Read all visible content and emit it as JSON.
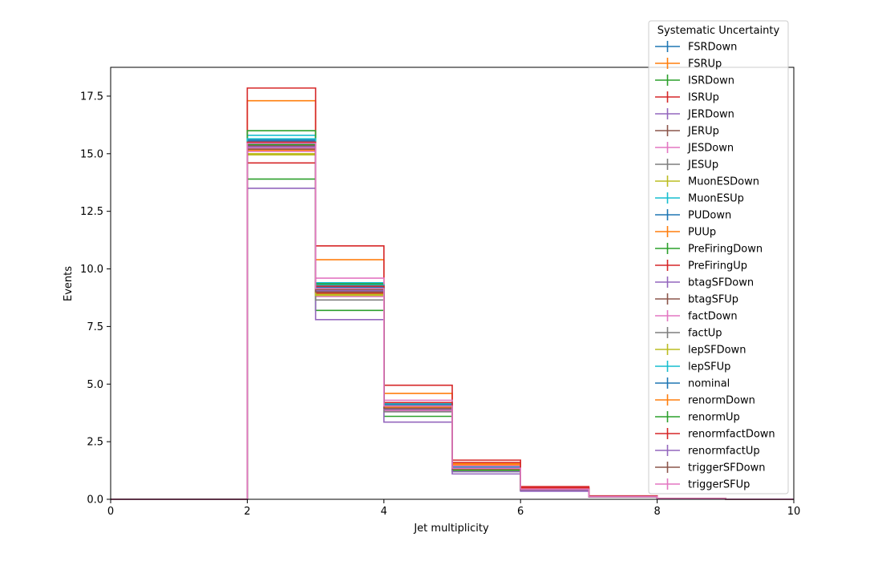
{
  "chart_data": {
    "type": "step-histogram",
    "xlabel": "Jet multiplicity",
    "ylabel": "Events",
    "xlim": [
      0,
      10
    ],
    "ylim": [
      0,
      18.75
    ],
    "x_ticks": [
      0,
      2,
      4,
      6,
      8,
      10
    ],
    "y_ticks": [
      0.0,
      2.5,
      5.0,
      7.5,
      10.0,
      12.5,
      15.0,
      17.5
    ],
    "x_tick_labels": [
      "0",
      "2",
      "4",
      "6",
      "8",
      "10"
    ],
    "y_tick_labels": [
      "0.0",
      "2.5",
      "5.0",
      "7.5",
      "10.0",
      "12.5",
      "15.0",
      "17.5"
    ],
    "bin_edges": [
      0,
      1,
      2,
      3,
      4,
      5,
      6,
      7,
      8,
      9,
      10
    ],
    "legend": {
      "title": "Systematic Uncertainty",
      "placement": "upper-right-outside-top"
    },
    "series": [
      {
        "name": "FSRDown",
        "color": "#1f77b4",
        "values": [
          0,
          0,
          15.6,
          9.3,
          4.1,
          1.4,
          0.45,
          0.13,
          0.03,
          0.005
        ]
      },
      {
        "name": "FSRUp",
        "color": "#ff7f0e",
        "values": [
          0,
          0,
          17.3,
          10.4,
          4.6,
          1.55,
          0.5,
          0.14,
          0.035,
          0.006
        ]
      },
      {
        "name": "ISRDown",
        "color": "#2ca02c",
        "values": [
          0,
          0,
          13.9,
          8.2,
          3.6,
          1.2,
          0.38,
          0.11,
          0.03,
          0.005
        ]
      },
      {
        "name": "ISRUp",
        "color": "#d62728",
        "values": [
          0,
          0,
          17.85,
          11.0,
          4.95,
          1.7,
          0.55,
          0.15,
          0.04,
          0.007
        ]
      },
      {
        "name": "JERDown",
        "color": "#9467bd",
        "values": [
          0,
          0,
          15.4,
          9.1,
          4.05,
          1.35,
          0.44,
          0.12,
          0.03,
          0.005
        ]
      },
      {
        "name": "JERUp",
        "color": "#8c564b",
        "values": [
          0,
          0,
          15.3,
          9.05,
          4.0,
          1.33,
          0.43,
          0.12,
          0.03,
          0.005
        ]
      },
      {
        "name": "JESDown",
        "color": "#e377c2",
        "values": [
          0,
          0,
          15.1,
          8.8,
          3.85,
          1.27,
          0.4,
          0.11,
          0.03,
          0.005
        ]
      },
      {
        "name": "JESUp",
        "color": "#7f7f7f",
        "values": [
          0,
          0,
          15.5,
          9.25,
          4.15,
          1.42,
          0.46,
          0.13,
          0.03,
          0.006
        ]
      },
      {
        "name": "MuonESDown",
        "color": "#bcbd22",
        "values": [
          0,
          0,
          15.0,
          8.9,
          3.95,
          1.3,
          0.42,
          0.12,
          0.03,
          0.005
        ]
      },
      {
        "name": "MuonESUp",
        "color": "#17becf",
        "values": [
          0,
          0,
          15.8,
          9.4,
          4.2,
          1.45,
          0.46,
          0.13,
          0.03,
          0.006
        ]
      },
      {
        "name": "PUDown",
        "color": "#1f77b4",
        "values": [
          0,
          0,
          15.55,
          9.2,
          4.1,
          1.38,
          0.45,
          0.13,
          0.03,
          0.005
        ]
      },
      {
        "name": "PUUp",
        "color": "#ff7f0e",
        "values": [
          0,
          0,
          15.2,
          9.0,
          3.95,
          1.32,
          0.43,
          0.12,
          0.03,
          0.005
        ]
      },
      {
        "name": "PreFiringDown",
        "color": "#2ca02c",
        "values": [
          0,
          0,
          16.0,
          9.35,
          4.15,
          1.4,
          0.45,
          0.13,
          0.03,
          0.005
        ]
      },
      {
        "name": "PreFiringUp",
        "color": "#d62728",
        "values": [
          0,
          0,
          14.6,
          8.95,
          3.9,
          1.3,
          0.42,
          0.12,
          0.03,
          0.005
        ]
      },
      {
        "name": "btagSFDown",
        "color": "#9467bd",
        "values": [
          0,
          0,
          13.5,
          7.8,
          3.35,
          1.1,
          0.35,
          0.1,
          0.025,
          0.004
        ]
      },
      {
        "name": "btagSFUp",
        "color": "#8c564b",
        "values": [
          0,
          0,
          15.35,
          9.1,
          4.05,
          1.35,
          0.44,
          0.12,
          0.03,
          0.005
        ]
      },
      {
        "name": "factDown",
        "color": "#e377c2",
        "values": [
          0,
          0,
          15.25,
          9.6,
          4.3,
          1.45,
          0.47,
          0.13,
          0.03,
          0.006
        ]
      },
      {
        "name": "factUp",
        "color": "#7f7f7f",
        "values": [
          0,
          0,
          15.3,
          8.65,
          3.8,
          1.25,
          0.4,
          0.11,
          0.03,
          0.005
        ]
      },
      {
        "name": "lepSFDown",
        "color": "#bcbd22",
        "values": [
          0,
          0,
          14.95,
          8.85,
          3.9,
          1.28,
          0.41,
          0.11,
          0.03,
          0.005
        ]
      },
      {
        "name": "lepSFUp",
        "color": "#17becf",
        "values": [
          0,
          0,
          15.65,
          9.3,
          4.15,
          1.4,
          0.45,
          0.13,
          0.03,
          0.005
        ]
      },
      {
        "name": "nominal",
        "color": "#1f77b4",
        "values": [
          0,
          0,
          15.45,
          9.2,
          4.1,
          1.38,
          0.44,
          0.12,
          0.03,
          0.005
        ]
      },
      {
        "name": "renormDown",
        "color": "#ff7f0e",
        "values": [
          0,
          0,
          15.15,
          9.0,
          4.0,
          1.5,
          0.47,
          0.13,
          0.03,
          0.006
        ]
      },
      {
        "name": "renormUp",
        "color": "#2ca02c",
        "values": [
          0,
          0,
          15.4,
          9.15,
          4.05,
          1.25,
          0.41,
          0.12,
          0.03,
          0.005
        ]
      },
      {
        "name": "renormfactDown",
        "color": "#d62728",
        "values": [
          0,
          0,
          15.5,
          9.25,
          4.2,
          1.6,
          0.5,
          0.14,
          0.035,
          0.006
        ]
      },
      {
        "name": "renormfactUp",
        "color": "#9467bd",
        "values": [
          0,
          0,
          15.3,
          9.05,
          3.9,
          1.2,
          0.39,
          0.11,
          0.03,
          0.005
        ]
      },
      {
        "name": "triggerSFDown",
        "color": "#8c564b",
        "values": [
          0,
          0,
          15.2,
          9.0,
          3.95,
          1.32,
          0.43,
          0.12,
          0.03,
          0.005
        ]
      },
      {
        "name": "triggerSFUp",
        "color": "#e377c2",
        "values": [
          0,
          0,
          15.45,
          9.15,
          4.05,
          1.35,
          0.44,
          0.12,
          0.03,
          0.005
        ]
      }
    ]
  }
}
